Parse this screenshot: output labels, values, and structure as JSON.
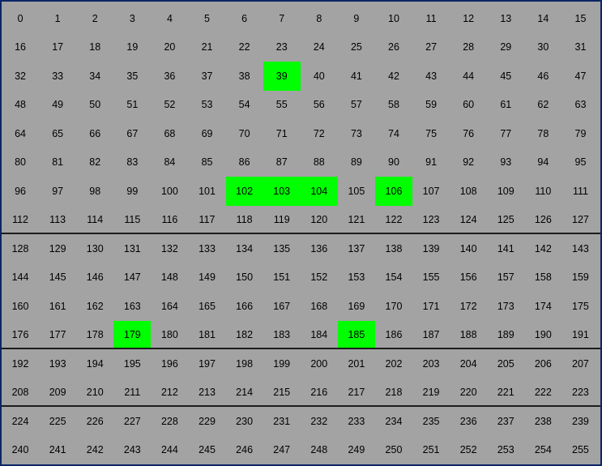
{
  "grid": {
    "columns": 16,
    "rows": 16,
    "start": 0,
    "cells": [
      "0",
      "1",
      "2",
      "3",
      "4",
      "5",
      "6",
      "7",
      "8",
      "9",
      "10",
      "11",
      "12",
      "13",
      "14",
      "15",
      "16",
      "17",
      "18",
      "19",
      "20",
      "21",
      "22",
      "23",
      "24",
      "25",
      "26",
      "27",
      "28",
      "29",
      "30",
      "31",
      "32",
      "33",
      "34",
      "35",
      "36",
      "37",
      "38",
      "39",
      "40",
      "41",
      "42",
      "43",
      "44",
      "45",
      "46",
      "47",
      "48",
      "49",
      "50",
      "51",
      "52",
      "53",
      "54",
      "55",
      "56",
      "57",
      "58",
      "59",
      "60",
      "61",
      "62",
      "63",
      "64",
      "65",
      "66",
      "67",
      "68",
      "69",
      "70",
      "71",
      "72",
      "73",
      "74",
      "75",
      "76",
      "77",
      "78",
      "79",
      "80",
      "81",
      "82",
      "83",
      "84",
      "85",
      "86",
      "87",
      "88",
      "89",
      "90",
      "91",
      "92",
      "93",
      "94",
      "95",
      "96",
      "97",
      "98",
      "99",
      "100",
      "101",
      "102",
      "103",
      "104",
      "105",
      "106",
      "107",
      "108",
      "109",
      "110",
      "111",
      "112",
      "113",
      "114",
      "115",
      "116",
      "117",
      "118",
      "119",
      "120",
      "121",
      "122",
      "123",
      "124",
      "125",
      "126",
      "127",
      "128",
      "129",
      "130",
      "131",
      "132",
      "133",
      "134",
      "135",
      "136",
      "137",
      "138",
      "139",
      "140",
      "141",
      "142",
      "143",
      "144",
      "145",
      "146",
      "147",
      "148",
      "149",
      "150",
      "151",
      "152",
      "153",
      "154",
      "155",
      "156",
      "157",
      "158",
      "159",
      "160",
      "161",
      "162",
      "163",
      "164",
      "165",
      "166",
      "167",
      "168",
      "169",
      "170",
      "171",
      "172",
      "173",
      "174",
      "175",
      "176",
      "177",
      "178",
      "179",
      "180",
      "181",
      "182",
      "183",
      "184",
      "185",
      "186",
      "187",
      "188",
      "189",
      "190",
      "191",
      "192",
      "193",
      "194",
      "195",
      "196",
      "197",
      "198",
      "199",
      "200",
      "201",
      "202",
      "203",
      "204",
      "205",
      "206",
      "207",
      "208",
      "209",
      "210",
      "211",
      "212",
      "213",
      "214",
      "215",
      "216",
      "217",
      "218",
      "219",
      "220",
      "221",
      "222",
      "223",
      "224",
      "225",
      "226",
      "227",
      "228",
      "229",
      "230",
      "231",
      "232",
      "233",
      "234",
      "235",
      "236",
      "237",
      "238",
      "239",
      "240",
      "241",
      "242",
      "243",
      "244",
      "245",
      "246",
      "247",
      "248",
      "249",
      "250",
      "251",
      "252",
      "253",
      "254",
      "255"
    ],
    "highlighted": [
      39,
      102,
      103,
      104,
      106,
      179,
      185
    ],
    "dividers_after_rows": [
      7,
      11,
      13
    ]
  },
  "colors": {
    "background": "#a3a3a3",
    "highlight": "#00ff00",
    "text": "#000000",
    "divider": "#1c1c1c",
    "border": "#0c2665"
  }
}
